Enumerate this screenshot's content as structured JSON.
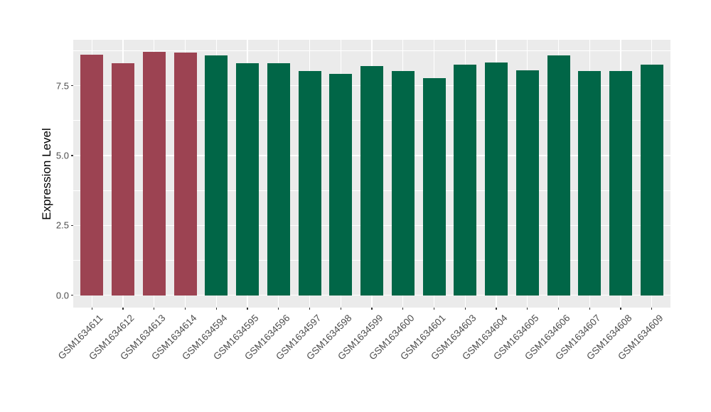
{
  "chart_data": {
    "type": "bar",
    "title": "",
    "xlabel": "",
    "ylabel": "Expression Level",
    "categories": [
      "GSM1634611",
      "GSM1634612",
      "GSM1634613",
      "GSM1634614",
      "GSM1634594",
      "GSM1634595",
      "GSM1634596",
      "GSM1634597",
      "GSM1634598",
      "GSM1634599",
      "GSM1634600",
      "GSM1634601",
      "GSM1634603",
      "GSM1634604",
      "GSM1634605",
      "GSM1634606",
      "GSM1634607",
      "GSM1634608",
      "GSM1634609"
    ],
    "values": [
      8.6,
      8.31,
      8.7,
      8.67,
      8.59,
      8.29,
      8.3,
      8.01,
      7.93,
      8.19,
      8.03,
      7.78,
      8.24,
      8.33,
      8.04,
      8.59,
      8.03,
      8.01,
      8.24
    ],
    "bar_colors": [
      "#9C4352",
      "#9C4352",
      "#9C4352",
      "#9C4352",
      "#016647",
      "#016647",
      "#016647",
      "#016647",
      "#016647",
      "#016647",
      "#016647",
      "#016647",
      "#016647",
      "#016647",
      "#016647",
      "#016647",
      "#016647",
      "#016647",
      "#016647"
    ],
    "y_tick_labels": [
      "0.0",
      "2.5",
      "5.0",
      "7.5"
    ],
    "y_tick_values": [
      0,
      2.5,
      5,
      7.5
    ],
    "y_minor_tick_values": [
      1.25,
      3.75,
      6.25,
      8.75
    ],
    "ylim": [
      -0.44,
      9.14
    ],
    "legend_position": "none",
    "grid": "on",
    "panel_background": "#EBEBEB",
    "gridline_color": "#FFFFFF",
    "axis_text_color": "#4D4D4D",
    "highlight_group_color": "#9C4352",
    "base_group_color": "#016647"
  }
}
